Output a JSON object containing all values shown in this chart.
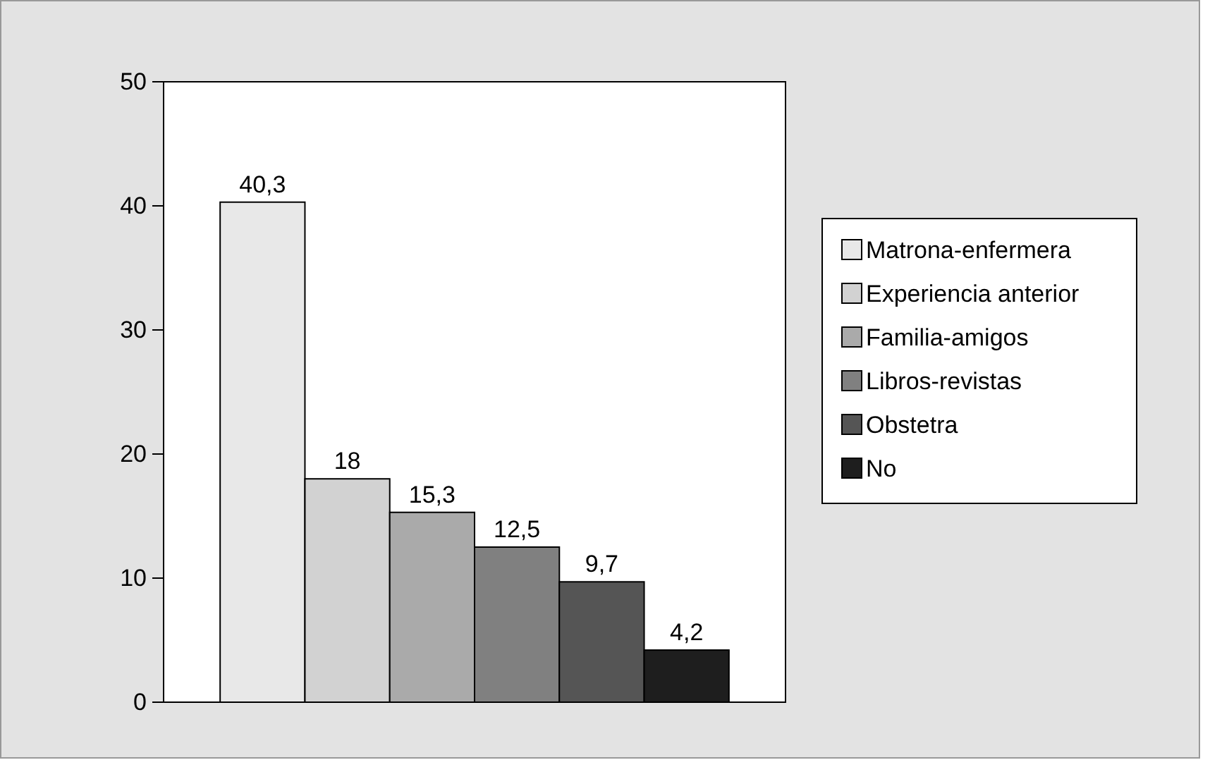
{
  "chart_data": {
    "type": "bar",
    "categories": [
      null
    ],
    "series": [
      {
        "name": "Matrona-enfermera",
        "color": "#e8e8e8",
        "values": [
          40.3
        ],
        "value_labels": [
          "40,3"
        ]
      },
      {
        "name": "Experiencia anterior",
        "color": "#d2d2d2",
        "values": [
          18
        ],
        "value_labels": [
          "18"
        ]
      },
      {
        "name": "Familia-amigos",
        "color": "#aaaaaa",
        "values": [
          15.3
        ],
        "value_labels": [
          "15,3"
        ]
      },
      {
        "name": "Libros-revistas",
        "color": "#808080",
        "values": [
          12.5
        ],
        "value_labels": [
          "12,5"
        ]
      },
      {
        "name": "Obstetra",
        "color": "#555555",
        "values": [
          9.7
        ],
        "value_labels": [
          "9,7"
        ]
      },
      {
        "name": "No",
        "color": "#1e1e1e",
        "values": [
          4.2
        ],
        "value_labels": [
          "4,2"
        ]
      }
    ],
    "ylim": [
      0,
      50
    ],
    "yticks": [
      0,
      10,
      20,
      30,
      40,
      50
    ],
    "grid": false,
    "legend": "right"
  }
}
